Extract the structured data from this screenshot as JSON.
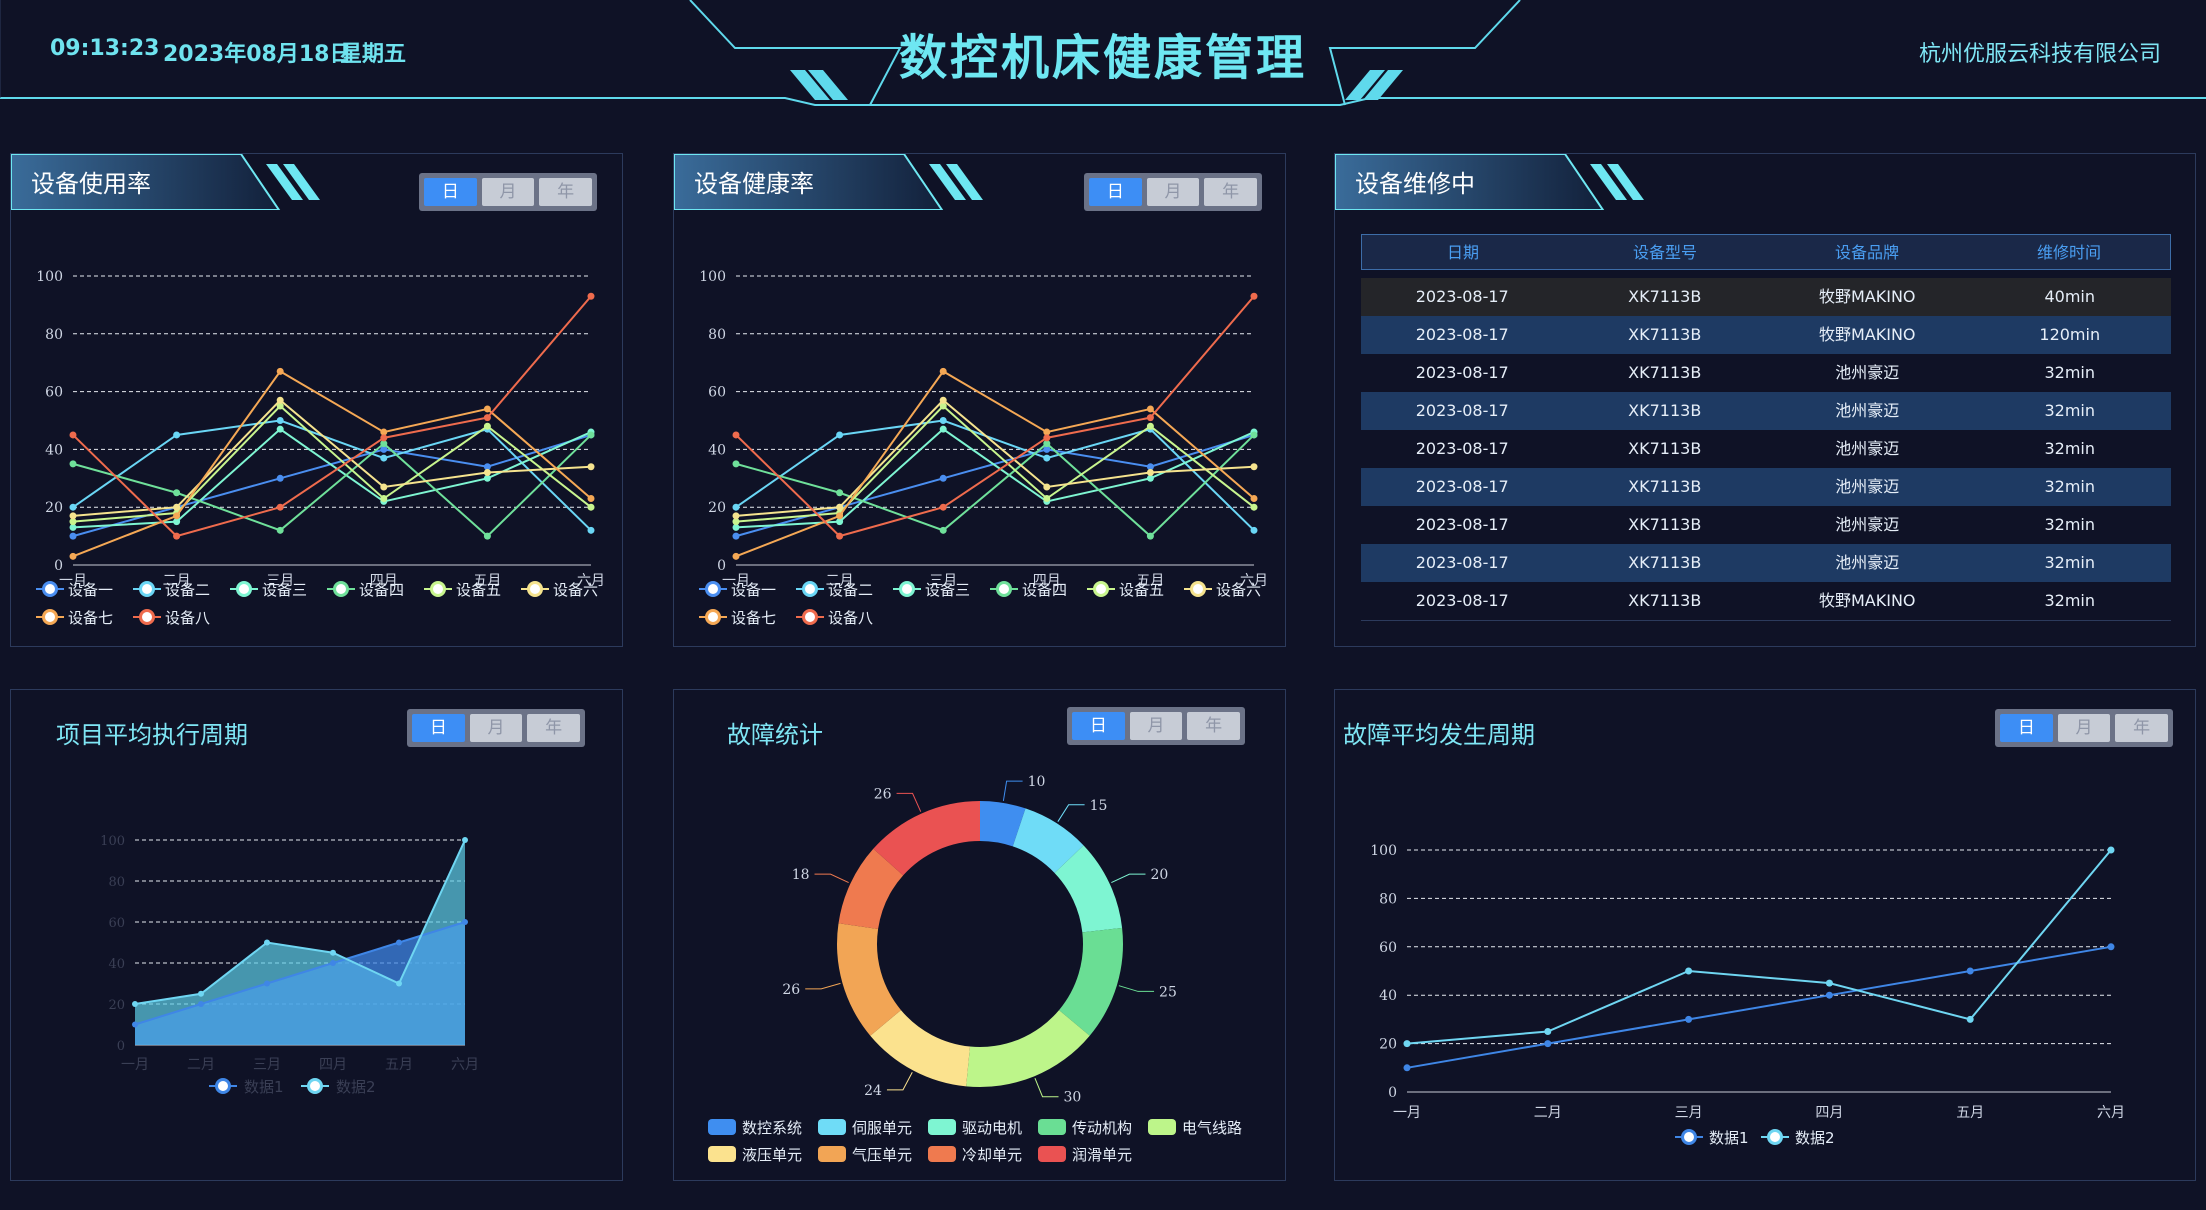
{
  "header": {
    "time": "09:13:23",
    "date": "2023年08月18日",
    "weekday": "星期五",
    "title": "数控机床健康管理",
    "company": "杭州优服云科技有限公司"
  },
  "segment": {
    "day": "日",
    "month": "月",
    "year": "年"
  },
  "panels": {
    "usage": {
      "title": "设备使用率"
    },
    "health": {
      "title": "设备健康率"
    },
    "repair": {
      "title": "设备维修中"
    },
    "project": {
      "title": "项目平均执行周期"
    },
    "fault": {
      "title": "故障统计"
    },
    "fault_cycle": {
      "title": "故障平均发生周期"
    }
  },
  "repair_table": {
    "headers": [
      "日期",
      "设备型号",
      "设备品牌",
      "维修时间"
    ],
    "rows": [
      [
        "2023-08-17",
        "XK7113B",
        "牧野MAKINO",
        "40min"
      ],
      [
        "2023-08-17",
        "XK7113B",
        "牧野MAKINO",
        "120min"
      ],
      [
        "2023-08-17",
        "XK7113B",
        "池州豪迈",
        "32min"
      ],
      [
        "2023-08-17",
        "XK7113B",
        "池州豪迈",
        "32min"
      ],
      [
        "2023-08-17",
        "XK7113B",
        "池州豪迈",
        "32min"
      ],
      [
        "2023-08-17",
        "XK7113B",
        "池州豪迈",
        "32min"
      ],
      [
        "2023-08-17",
        "XK7113B",
        "池州豪迈",
        "32min"
      ],
      [
        "2023-08-17",
        "XK7113B",
        "池州豪迈",
        "32min"
      ],
      [
        "2023-08-17",
        "XK7113B",
        "牧野MAKINO",
        "32min"
      ]
    ]
  },
  "colors": {
    "accent": "#6ee7f2",
    "panel_border": "#2c3a5c",
    "row_highlight": "#1e3a63",
    "row_dark": "#242529",
    "segment_active": "#3d8ef5"
  },
  "chart_data": [
    {
      "id": "usage",
      "type": "line",
      "categories": [
        "一月",
        "二月",
        "三月",
        "四月",
        "五月",
        "六月"
      ],
      "ylim": [
        0,
        100
      ],
      "yticks": [
        0,
        20,
        40,
        60,
        80,
        100
      ],
      "grid": true,
      "legend": "bottom",
      "series": [
        {
          "name": "设备一",
          "color": "#4a8ef0",
          "values": [
            10,
            20,
            30,
            40,
            34,
            45
          ]
        },
        {
          "name": "设备二",
          "color": "#6ad6f5",
          "values": [
            20,
            45,
            50,
            37,
            47,
            12
          ]
        },
        {
          "name": "设备三",
          "color": "#7ef5d2",
          "values": [
            13,
            15,
            47,
            22,
            30,
            46
          ]
        },
        {
          "name": "设备四",
          "color": "#6fe09a",
          "values": [
            35,
            25,
            12,
            42,
            10,
            45
          ]
        },
        {
          "name": "设备五",
          "color": "#c8f58e",
          "values": [
            15,
            18,
            55,
            23,
            48,
            20
          ]
        },
        {
          "name": "设备六",
          "color": "#f5e38e",
          "values": [
            17,
            20,
            57,
            27,
            32,
            34
          ]
        },
        {
          "name": "设备七",
          "color": "#f5a855",
          "values": [
            3,
            17,
            67,
            46,
            54,
            23
          ]
        },
        {
          "name": "设备八",
          "color": "#ef6b4d",
          "values": [
            45,
            10,
            20,
            44,
            51,
            93
          ]
        }
      ]
    },
    {
      "id": "health",
      "type": "line",
      "categories": [
        "一月",
        "二月",
        "三月",
        "四月",
        "五月",
        "六月"
      ],
      "ylim": [
        0,
        100
      ],
      "yticks": [
        0,
        20,
        40,
        60,
        80,
        100
      ],
      "grid": true,
      "legend": "bottom",
      "series": [
        {
          "name": "设备一",
          "color": "#4a8ef0",
          "values": [
            10,
            20,
            30,
            40,
            34,
            45
          ]
        },
        {
          "name": "设备二",
          "color": "#6ad6f5",
          "values": [
            20,
            45,
            50,
            37,
            47,
            12
          ]
        },
        {
          "name": "设备三",
          "color": "#7ef5d2",
          "values": [
            13,
            15,
            47,
            22,
            30,
            46
          ]
        },
        {
          "name": "设备四",
          "color": "#6fe09a",
          "values": [
            35,
            25,
            12,
            42,
            10,
            45
          ]
        },
        {
          "name": "设备五",
          "color": "#c8f58e",
          "values": [
            15,
            18,
            55,
            23,
            48,
            20
          ]
        },
        {
          "name": "设备六",
          "color": "#f5e38e",
          "values": [
            17,
            20,
            57,
            27,
            32,
            34
          ]
        },
        {
          "name": "设备七",
          "color": "#f5a855",
          "values": [
            3,
            17,
            67,
            46,
            54,
            23
          ]
        },
        {
          "name": "设备八",
          "color": "#ef6b4d",
          "values": [
            45,
            10,
            20,
            44,
            51,
            93
          ]
        }
      ]
    },
    {
      "id": "project",
      "type": "area",
      "categories": [
        "一月",
        "二月",
        "三月",
        "四月",
        "五月",
        "六月"
      ],
      "ylim": [
        0,
        100
      ],
      "yticks": [
        0,
        20,
        40,
        60,
        80,
        100
      ],
      "grid": true,
      "legend": "bottom",
      "series": [
        {
          "name": "数据1",
          "color": "#3f86e6",
          "values": [
            10,
            20,
            30,
            40,
            50,
            60
          ]
        },
        {
          "name": "数据2",
          "color": "#6fd6f2",
          "values": [
            20,
            25,
            50,
            45,
            30,
            100
          ]
        }
      ]
    },
    {
      "id": "fault",
      "type": "pie",
      "donut": true,
      "legend": "bottom",
      "slices": [
        {
          "name": "数控系统",
          "value": 10,
          "color": "#3f8ef0"
        },
        {
          "name": "伺服单元",
          "value": 15,
          "color": "#6fdcf7"
        },
        {
          "name": "驱动电机",
          "value": 20,
          "color": "#7ef5d2"
        },
        {
          "name": "传动机构",
          "value": 25,
          "color": "#6ade94"
        },
        {
          "name": "电气线路",
          "value": 30,
          "color": "#bdf58a"
        },
        {
          "name": "液压单元",
          "value": 24,
          "color": "#fbe28e"
        },
        {
          "name": "气压单元",
          "value": 26,
          "color": "#f2a555"
        },
        {
          "name": "冷却单元",
          "value": 18,
          "color": "#ef7a4f"
        },
        {
          "name": "润滑单元",
          "value": 26,
          "color": "#ea5252"
        }
      ]
    },
    {
      "id": "fault_cycle",
      "type": "line",
      "categories": [
        "一月",
        "二月",
        "三月",
        "四月",
        "五月",
        "六月"
      ],
      "ylim": [
        0,
        100
      ],
      "yticks": [
        0,
        20,
        40,
        60,
        80,
        100
      ],
      "grid": true,
      "legend": "bottom",
      "series": [
        {
          "name": "数据1",
          "color": "#3f86e6",
          "values": [
            10,
            20,
            30,
            40,
            50,
            60
          ]
        },
        {
          "name": "数据2",
          "color": "#6fd6f2",
          "values": [
            20,
            25,
            50,
            45,
            30,
            100
          ]
        }
      ]
    }
  ]
}
